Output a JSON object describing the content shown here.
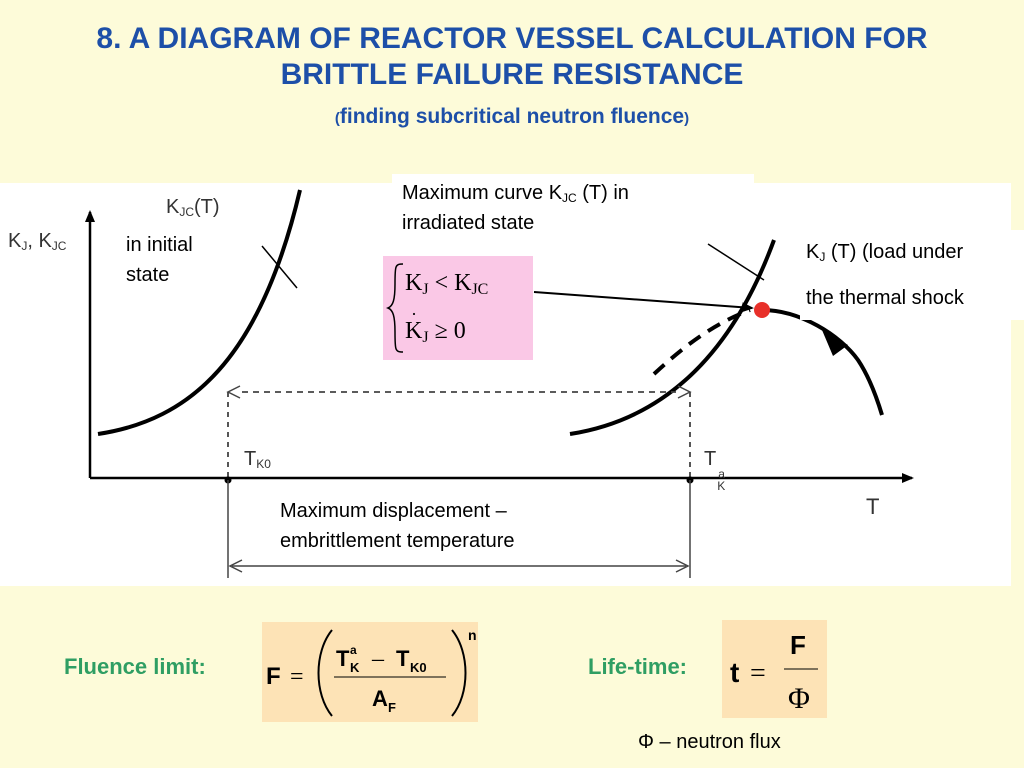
{
  "title": {
    "line1": "8. A DIAGRAM OF REACTOR VESSEL CALCULATION FOR",
    "line2": "BRITTLE FAILURE RESISTANCE",
    "paren_open": "(",
    "sub": "finding subcritical neutron fluence",
    "paren_close": ")"
  },
  "diagram": {
    "y_axis_label": "K_J, K_JC",
    "x_axis_label": "T",
    "curve_label_kjc": "K_JC(T)",
    "initial_state_line1": "in initial",
    "initial_state_line2": "state",
    "max_curve_text1": "Maximum curve K",
    "max_curve_sub": "JC",
    "max_curve_text2": " (T) in",
    "max_curve_line2": "irradiated state",
    "load_k": "K",
    "load_sub": "J",
    "load_text1": " (T) (load under",
    "load_line2": "the thermal shock",
    "tk0_label": "T",
    "tk0_sub": "K0",
    "tka_label": "T",
    "tka_sub": "K",
    "tka_sup": "a",
    "displacement_line1": "Maximum displacement –",
    "displacement_line2": "embrittlement temperature",
    "condition_line1": "K_J < K_JC",
    "condition_line2": "K̇_J ≥ 0",
    "colors": {
      "curve": "#000000",
      "intersection_point": "#e8302a",
      "condition_box": "#fac8e6"
    }
  },
  "equations": {
    "fluence_label": "Fluence limit:",
    "fluence_formula": "F = ((T_K^a − T_K0)/A_F)^n",
    "lifetime_label": "Life-time:",
    "lifetime_formula": "t = F / Φ",
    "phi_note": "Φ – neutron flux",
    "colors": {
      "label": "#2f9e63",
      "box": "#fde3b6",
      "title": "#1d4fa8"
    }
  }
}
